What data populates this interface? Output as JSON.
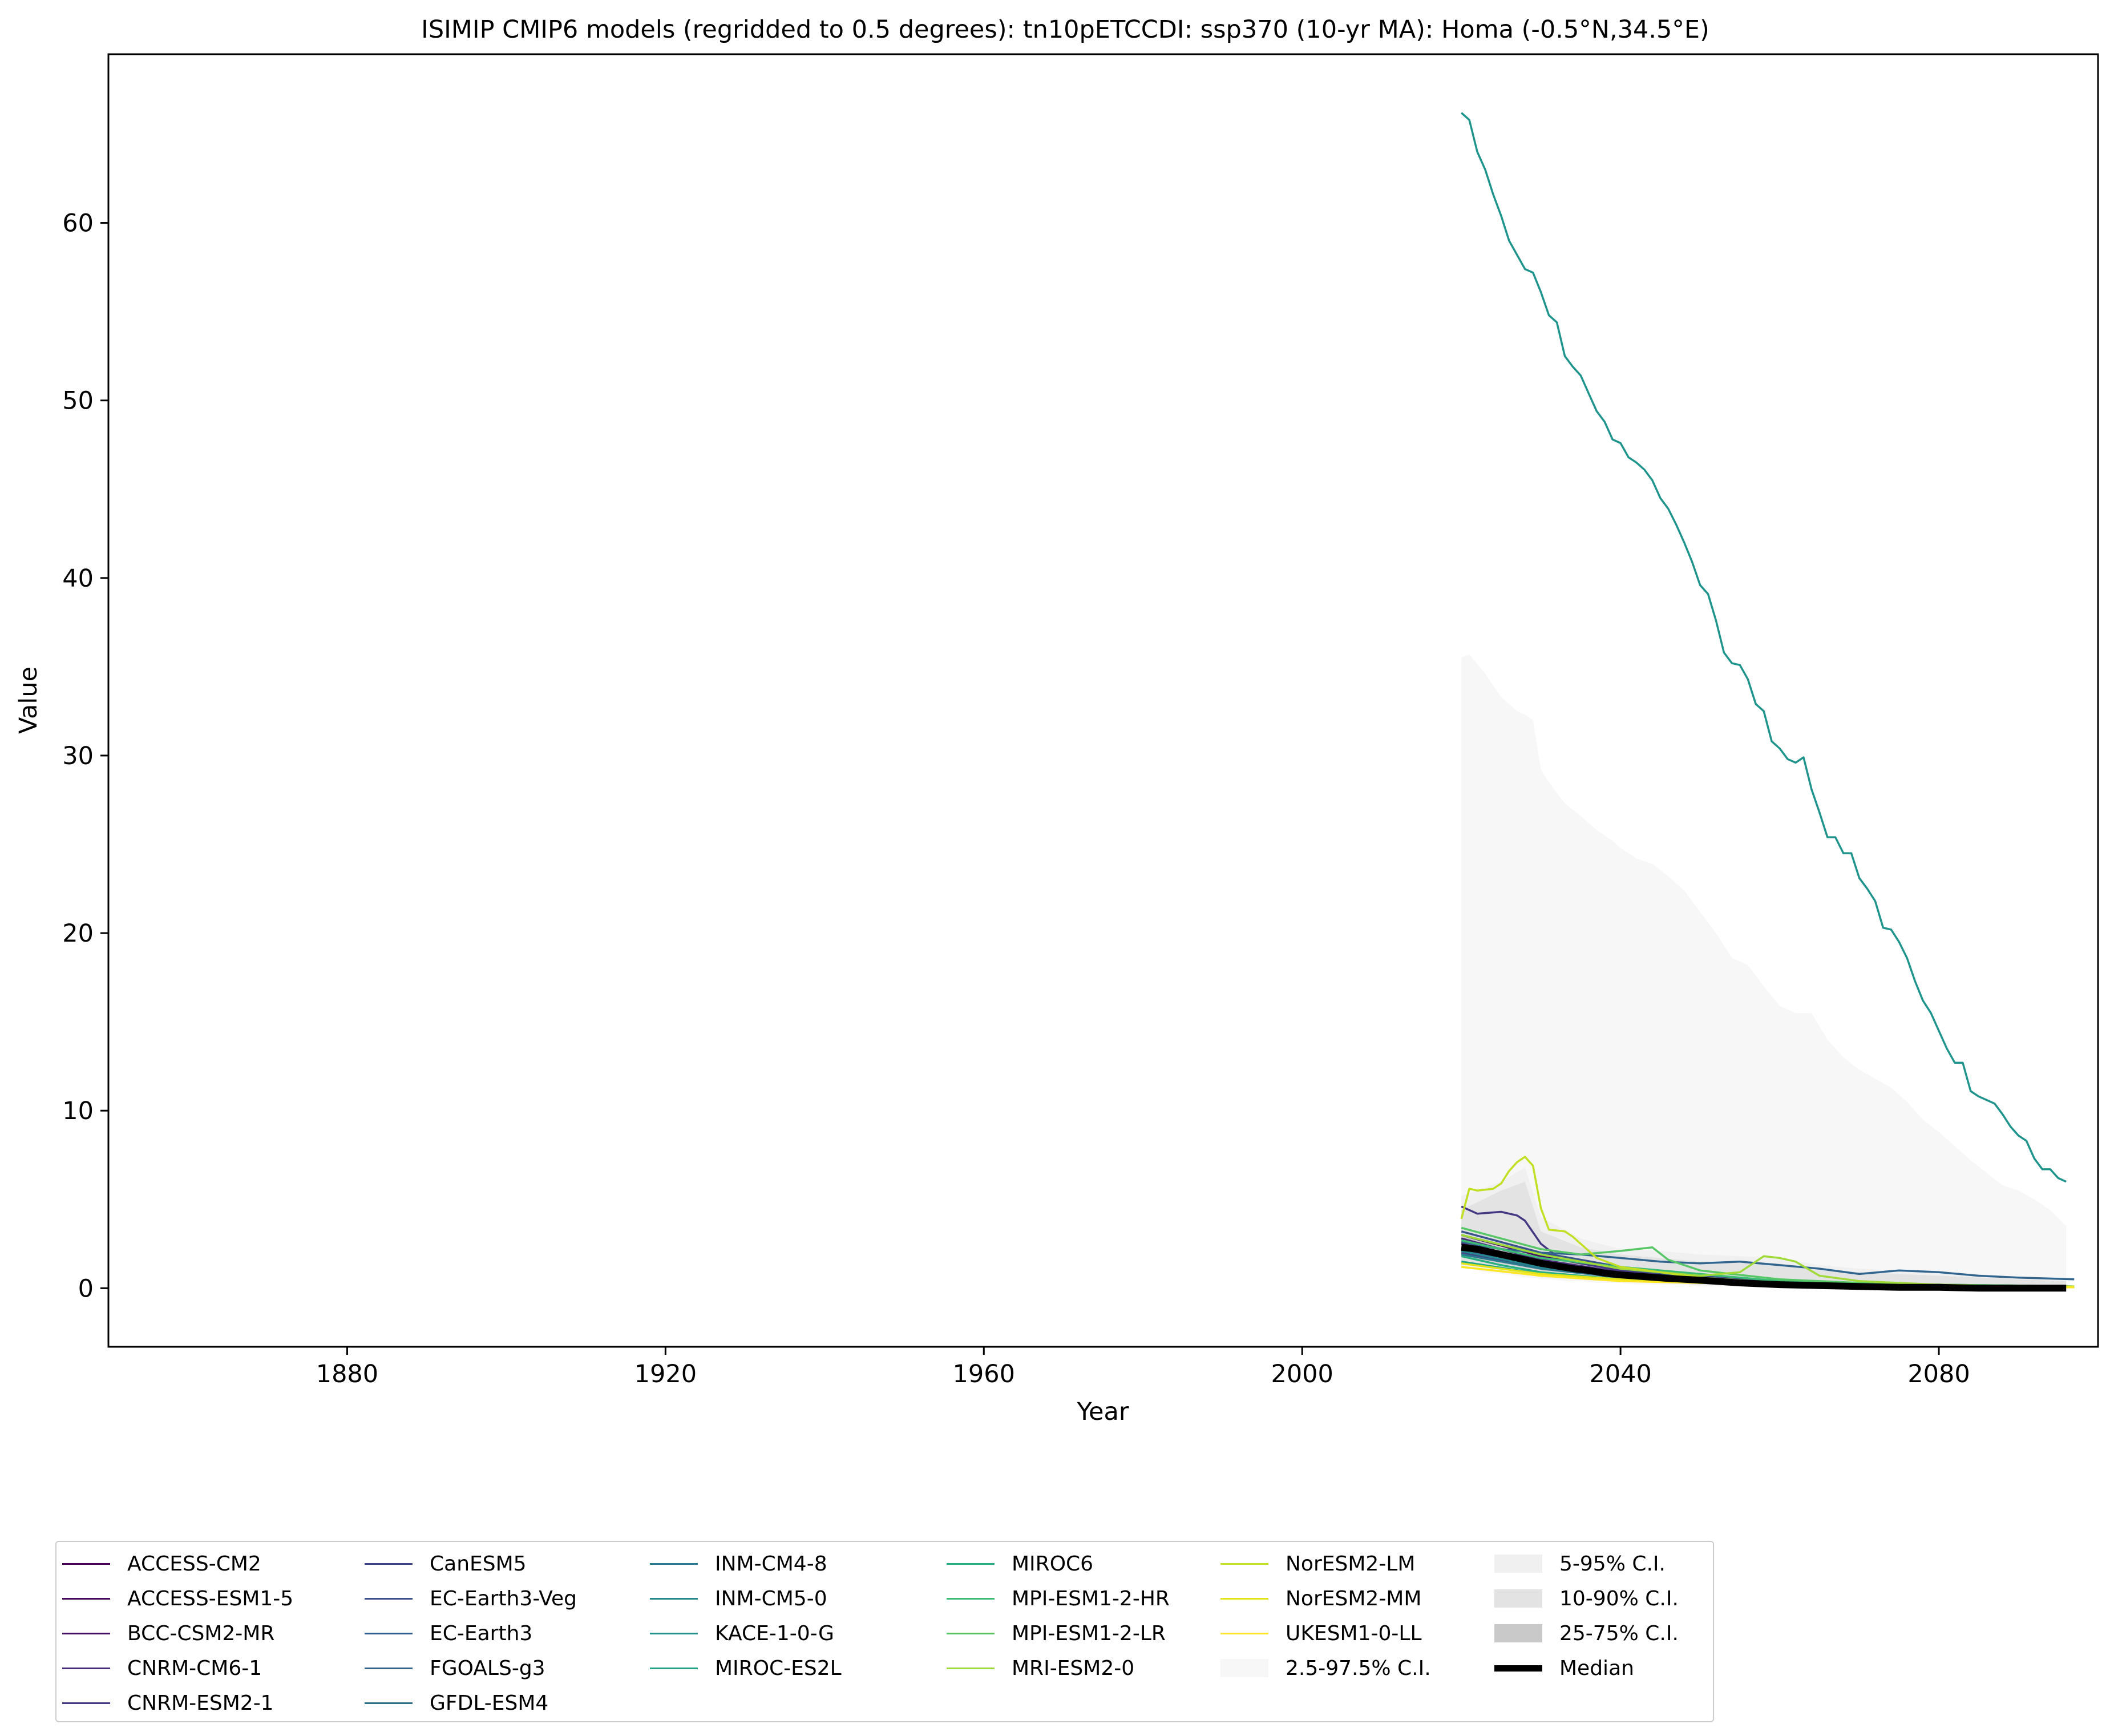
{
  "chart_data": {
    "type": "line",
    "title": "ISIMIP CMIP6 models (regridded to 0.5 degrees): tn10pETCCDI: ssp370 (10-yr MA): Homa (-0.5°N,34.5°E)",
    "xlabel": "Year",
    "ylabel": "Value",
    "xlim": [
      1850,
      2100
    ],
    "ylim": [
      -3.3,
      69.5
    ],
    "xticks": [
      1880,
      1920,
      1960,
      2000,
      2040,
      2080
    ],
    "yticks": [
      0,
      10,
      20,
      30,
      40,
      50,
      60
    ],
    "grid": false,
    "legend_position": "bottom",
    "series": [
      {
        "name": "ACCESS-CM2",
        "color": "#440154",
        "x": [
          2020,
          2030,
          2040,
          2050,
          2060,
          2070,
          2080,
          2090,
          2097
        ],
        "y": [
          2.2,
          1.3,
          0.8,
          0.5,
          0.3,
          0.2,
          0.15,
          0.1,
          0.1
        ]
      },
      {
        "name": "ACCESS-ESM1-5",
        "color": "#46085c",
        "x": [
          2020,
          2030,
          2040,
          2050,
          2060,
          2070,
          2080,
          2090,
          2097
        ],
        "y": [
          2.5,
          1.5,
          0.9,
          0.5,
          0.3,
          0.2,
          0.15,
          0.1,
          0.1
        ]
      },
      {
        "name": "BCC-CSM2-MR",
        "color": "#471164",
        "x": [
          2020,
          2030,
          2040,
          2050,
          2060,
          2070,
          2080,
          2090,
          2097
        ],
        "y": [
          3.0,
          1.8,
          1.0,
          0.6,
          0.3,
          0.2,
          0.15,
          0.1,
          0.1
        ]
      },
      {
        "name": "CNRM-CM6-1",
        "color": "#472b7a",
        "x": [
          2020,
          2030,
          2040,
          2050,
          2060,
          2070,
          2080,
          2090,
          2097
        ],
        "y": [
          2.8,
          1.6,
          0.9,
          0.5,
          0.3,
          0.2,
          0.1,
          0.1,
          0.1
        ]
      },
      {
        "name": "CNRM-ESM2-1",
        "color": "#453882",
        "x": [
          2020,
          2022,
          2025,
          2027,
          2028,
          2030,
          2032,
          2035,
          2040,
          2050,
          2060,
          2070,
          2080,
          2090,
          2097
        ],
        "y": [
          4.6,
          4.2,
          4.3,
          4.1,
          3.8,
          2.5,
          1.8,
          1.4,
          1.0,
          0.6,
          0.3,
          0.2,
          0.15,
          0.1,
          0.1
        ]
      },
      {
        "name": "CanESM5",
        "color": "#3f4788",
        "x": [
          2020,
          2030,
          2040,
          2050,
          2060,
          2070,
          2080,
          2090,
          2097
        ],
        "y": [
          2.0,
          1.2,
          0.7,
          0.4,
          0.2,
          0.15,
          0.1,
          0.1,
          0.1
        ]
      },
      {
        "name": "EC-Earth3-Veg",
        "color": "#3a528b",
        "x": [
          2020,
          2030,
          2040,
          2050,
          2060,
          2070,
          2080,
          2090,
          2097
        ],
        "y": [
          3.2,
          2.0,
          1.2,
          0.7,
          0.4,
          0.3,
          0.2,
          0.15,
          0.1
        ]
      },
      {
        "name": "EC-Earth3",
        "color": "#365d8d",
        "x": [
          2020,
          2030,
          2040,
          2050,
          2060,
          2070,
          2080,
          2090,
          2097
        ],
        "y": [
          3.0,
          1.9,
          1.1,
          0.6,
          0.3,
          0.2,
          0.15,
          0.1,
          0.1
        ]
      },
      {
        "name": "FGOALS-g3",
        "color": "#32658e",
        "x": [
          2020,
          2025,
          2030,
          2035,
          2040,
          2045,
          2050,
          2055,
          2060,
          2065,
          2070,
          2075,
          2080,
          2085,
          2090,
          2097
        ],
        "y": [
          2.6,
          2.2,
          2.0,
          1.9,
          1.7,
          1.5,
          1.4,
          1.5,
          1.3,
          1.1,
          0.8,
          1.0,
          0.9,
          0.7,
          0.6,
          0.5
        ]
      },
      {
        "name": "GFDL-ESM4",
        "color": "#2d708e",
        "x": [
          2020,
          2030,
          2040,
          2050,
          2060,
          2070,
          2080,
          2090,
          2097
        ],
        "y": [
          2.3,
          1.4,
          0.8,
          0.4,
          0.2,
          0.15,
          0.1,
          0.1,
          0.1
        ]
      },
      {
        "name": "INM-CM4-8",
        "color": "#297a8e",
        "x": [
          2020,
          2030,
          2040,
          2050,
          2060,
          2070,
          2080,
          2090,
          2097
        ],
        "y": [
          1.9,
          1.1,
          0.6,
          0.3,
          0.2,
          0.1,
          0.1,
          0.05,
          0.05
        ]
      },
      {
        "name": "INM-CM5-0",
        "color": "#23898e",
        "x": [
          2020,
          2030,
          2040,
          2050,
          2060,
          2070,
          2080,
          2090,
          2097
        ],
        "y": [
          2.1,
          1.2,
          0.7,
          0.4,
          0.2,
          0.1,
          0.1,
          0.05,
          0.05
        ]
      },
      {
        "name": "KACE-1-0-G",
        "color": "#1f948c",
        "x": [
          2020,
          2021,
          2022,
          2023,
          2024,
          2025,
          2026,
          2027,
          2028,
          2029,
          2030,
          2031,
          2032,
          2033,
          2034,
          2035,
          2036,
          2037,
          2038,
          2039,
          2040,
          2041,
          2042,
          2043,
          2044,
          2045,
          2046,
          2047,
          2048,
          2049,
          2050,
          2051,
          2052,
          2053,
          2054,
          2055,
          2056,
          2057,
          2058,
          2059,
          2060,
          2061,
          2062,
          2063,
          2064,
          2065,
          2066,
          2067,
          2068,
          2069,
          2070,
          2071,
          2072,
          2073,
          2074,
          2075,
          2076,
          2077,
          2078,
          2079,
          2080,
          2081,
          2082,
          2083,
          2084,
          2085,
          2086,
          2087,
          2088,
          2089,
          2090,
          2091,
          2092,
          2093,
          2094,
          2095,
          2096
        ],
        "y": [
          66.2,
          65.8,
          64.0,
          63.0,
          61.6,
          60.4,
          59.0,
          58.2,
          57.4,
          57.2,
          56.1,
          54.8,
          54.4,
          52.5,
          51.9,
          51.4,
          50.4,
          49.4,
          48.8,
          47.8,
          47.6,
          46.8,
          46.5,
          46.1,
          45.5,
          44.5,
          43.9,
          43.0,
          42.0,
          40.9,
          39.6,
          39.1,
          37.6,
          35.8,
          35.2,
          35.1,
          34.3,
          32.9,
          32.5,
          30.8,
          30.4,
          29.8,
          29.6,
          29.9,
          28.1,
          26.8,
          25.4,
          25.4,
          24.5,
          24.5,
          23.1,
          22.5,
          21.8,
          20.3,
          20.2,
          19.5,
          18.6,
          17.3,
          16.2,
          15.5,
          14.5,
          13.5,
          12.7,
          12.7,
          11.1,
          10.8,
          10.6,
          10.4,
          9.8,
          9.1,
          8.6,
          8.3,
          7.3,
          6.7,
          6.7,
          6.2,
          6.0
        ]
      },
      {
        "name": "MIROC-ES2L",
        "color": "#21a685",
        "x": [
          2020,
          2030,
          2040,
          2050,
          2060,
          2070,
          2080,
          2090,
          2097
        ],
        "y": [
          1.5,
          0.8,
          0.5,
          0.3,
          0.2,
          0.1,
          0.1,
          0.05,
          0.05
        ]
      },
      {
        "name": "MIROC6",
        "color": "#29af7f",
        "x": [
          2020,
          2025,
          2030,
          2035,
          2040,
          2050,
          2060,
          2070,
          2080,
          2090,
          2097
        ],
        "y": [
          1.8,
          1.3,
          0.9,
          0.7,
          0.5,
          0.3,
          0.2,
          0.1,
          0.1,
          0.05,
          0.05
        ]
      },
      {
        "name": "MPI-ESM1-2-HR",
        "color": "#3dbc74",
        "x": [
          2020,
          2030,
          2040,
          2050,
          2060,
          2070,
          2080,
          2090,
          2097
        ],
        "y": [
          2.7,
          1.7,
          1.2,
          0.8,
          0.4,
          0.3,
          0.2,
          0.15,
          0.1
        ]
      },
      {
        "name": "MPI-ESM1-2-LR",
        "color": "#56c667",
        "x": [
          2020,
          2030,
          2035,
          2040,
          2044,
          2046,
          2050,
          2060,
          2070,
          2080,
          2090,
          2097
        ],
        "y": [
          3.4,
          2.2,
          1.9,
          2.1,
          2.3,
          1.6,
          1.0,
          0.5,
          0.3,
          0.2,
          0.15,
          0.1
        ]
      },
      {
        "name": "MRI-ESM2-0",
        "color": "#a0da39",
        "x": [
          2020,
          2030,
          2040,
          2050,
          2055,
          2058,
          2060,
          2062,
          2065,
          2070,
          2080,
          2090,
          2097
        ],
        "y": [
          3.0,
          1.9,
          1.1,
          0.7,
          0.9,
          1.8,
          1.7,
          1.5,
          0.7,
          0.4,
          0.2,
          0.1,
          0.1
        ]
      },
      {
        "name": "NorESM2-LM",
        "color": "#c2df23",
        "x": [
          2020,
          2021,
          2022,
          2024,
          2025,
          2026,
          2027,
          2028,
          2029,
          2030,
          2031,
          2033,
          2034,
          2035,
          2037,
          2040,
          2050,
          2060,
          2070,
          2080,
          2090,
          2097
        ],
        "y": [
          3.9,
          5.6,
          5.5,
          5.6,
          5.9,
          6.6,
          7.1,
          7.4,
          6.9,
          4.5,
          3.3,
          3.2,
          2.9,
          2.5,
          1.7,
          1.2,
          0.6,
          0.3,
          0.2,
          0.15,
          0.1,
          0.1
        ]
      },
      {
        "name": "NorESM2-MM",
        "color": "#e2e418",
        "x": [
          2020,
          2030,
          2040,
          2050,
          2060,
          2070,
          2080,
          2090,
          2097
        ],
        "y": [
          1.4,
          0.8,
          0.5,
          0.3,
          0.2,
          0.1,
          0.1,
          0.05,
          0.05
        ]
      },
      {
        "name": "UKESM1-0-LL",
        "color": "#fde725",
        "x": [
          2020,
          2030,
          2040,
          2050,
          2060,
          2070,
          2080,
          2090,
          2097
        ],
        "y": [
          1.2,
          0.7,
          0.4,
          0.3,
          0.2,
          0.1,
          0.1,
          0.05,
          0.05
        ]
      }
    ],
    "bands": [
      {
        "name": "2.5-97.5% C.I.",
        "color": "#f7f7f7",
        "x": [
          2020,
          2021,
          2023,
          2025,
          2027,
          2028,
          2029,
          2030,
          2031,
          2033,
          2035,
          2037,
          2039,
          2040,
          2042,
          2044,
          2046,
          2048,
          2050,
          2052,
          2054,
          2056,
          2058,
          2060,
          2062,
          2064,
          2066,
          2068,
          2070,
          2072,
          2074,
          2076,
          2078,
          2080,
          2082,
          2084,
          2086,
          2088,
          2090,
          2092,
          2094,
          2096
        ],
        "lower": [
          1.2,
          1.1,
          0.9,
          0.8,
          0.7,
          0.6,
          0.6,
          0.5,
          0.5,
          0.4,
          0.4,
          0.3,
          0.3,
          0.3,
          0.2,
          0.2,
          0.2,
          0.2,
          0.1,
          0.1,
          0.1,
          0.1,
          0.1,
          0.1,
          0.05,
          0.05,
          0.05,
          0.05,
          0.05,
          0.0,
          0.0,
          0.0,
          0.0,
          0.0,
          0.0,
          0.0,
          0.0,
          0.0,
          0.0,
          0.0,
          0.0,
          0.0
        ],
        "upper": [
          35.5,
          35.7,
          34.6,
          33.3,
          32.5,
          32.3,
          32.0,
          29.2,
          28.5,
          27.3,
          26.6,
          25.8,
          25.2,
          24.8,
          24.2,
          23.9,
          23.2,
          22.4,
          21.2,
          20.0,
          18.6,
          18.2,
          17.0,
          15.9,
          15.5,
          15.5,
          14.0,
          13.0,
          12.3,
          11.8,
          11.3,
          10.5,
          9.5,
          8.8,
          8.0,
          7.2,
          6.5,
          5.8,
          5.5,
          5.0,
          4.4,
          3.5
        ]
      },
      {
        "name": "5-95% C.I.",
        "color": "#f0f0f0",
        "x": [
          2020,
          2025,
          2028,
          2030,
          2035,
          2040,
          2045,
          2050,
          2055,
          2060,
          2065,
          2070,
          2075,
          2080,
          2085,
          2090,
          2096
        ],
        "lower": [
          1.3,
          1.0,
          0.8,
          0.6,
          0.5,
          0.4,
          0.3,
          0.2,
          0.1,
          0.1,
          0.05,
          0.05,
          0.0,
          0.0,
          0.0,
          0.0,
          0.0
        ],
        "upper": [
          5.2,
          6.0,
          6.8,
          4.0,
          2.8,
          2.2,
          2.1,
          1.9,
          1.8,
          1.7,
          1.3,
          1.1,
          1.0,
          0.9,
          0.8,
          0.6,
          0.5
        ]
      },
      {
        "name": "10-90% C.I.",
        "color": "#e3e3e3",
        "x": [
          2020,
          2025,
          2028,
          2030,
          2035,
          2040,
          2045,
          2050,
          2055,
          2060,
          2065,
          2070,
          2075,
          2080,
          2085,
          2090,
          2096
        ],
        "lower": [
          1.4,
          1.1,
          0.9,
          0.7,
          0.5,
          0.4,
          0.3,
          0.2,
          0.15,
          0.1,
          0.05,
          0.05,
          0.0,
          0.0,
          0.0,
          0.0,
          0.0
        ],
        "upper": [
          4.4,
          5.5,
          6.0,
          3.2,
          2.3,
          1.9,
          1.7,
          1.5,
          1.5,
          1.4,
          1.0,
          0.9,
          0.8,
          0.7,
          0.6,
          0.5,
          0.4
        ]
      },
      {
        "name": "25-75% C.I.",
        "color": "#c9c9c9",
        "x": [
          2020,
          2025,
          2030,
          2035,
          2040,
          2045,
          2050,
          2055,
          2060,
          2065,
          2070,
          2075,
          2080,
          2085,
          2090,
          2096
        ],
        "lower": [
          1.8,
          1.4,
          1.0,
          0.8,
          0.6,
          0.4,
          0.3,
          0.2,
          0.15,
          0.1,
          0.05,
          0.05,
          0.0,
          0.0,
          0.0,
          0.0
        ],
        "upper": [
          3.0,
          2.3,
          1.8,
          1.4,
          1.0,
          0.8,
          0.6,
          0.5,
          0.4,
          0.35,
          0.3,
          0.25,
          0.2,
          0.15,
          0.1,
          0.1
        ]
      }
    ],
    "median": {
      "name": "Median",
      "color": "#000000",
      "x": [
        2020,
        2022,
        2024,
        2026,
        2028,
        2030,
        2032,
        2034,
        2036,
        2038,
        2040,
        2043,
        2046,
        2050,
        2055,
        2060,
        2065,
        2070,
        2075,
        2080,
        2085,
        2090,
        2096
      ],
      "y": [
        2.3,
        2.2,
        2.0,
        1.8,
        1.6,
        1.4,
        1.25,
        1.1,
        1.0,
        0.85,
        0.75,
        0.65,
        0.55,
        0.45,
        0.3,
        0.2,
        0.15,
        0.1,
        0.05,
        0.05,
        0.0,
        0.0,
        0.0
      ]
    },
    "legend": {
      "ci_25_975": "2.5-97.5% C.I.",
      "ci_5_95": "5-95% C.I.",
      "ci_10_90": "10-90% C.I.",
      "ci_25_75": "25-75% C.I.",
      "median": "Median"
    }
  }
}
